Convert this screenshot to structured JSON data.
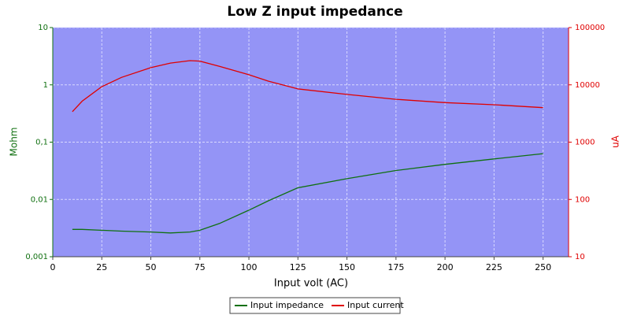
{
  "chart_data": {
    "type": "line",
    "title": "Low Z input impedance",
    "xlabel": "Input volt (AC)",
    "ylabel": "Mohm",
    "y2label": "uA",
    "x": [
      10,
      15,
      25,
      35,
      50,
      60,
      70,
      75,
      85,
      100,
      110,
      125,
      150,
      175,
      200,
      225,
      250
    ],
    "series": [
      {
        "name": "Input impedance",
        "color": "#107010",
        "values": [
          0.003,
          0.003,
          0.0029,
          0.0028,
          0.0027,
          0.0026,
          0.0027,
          0.0029,
          0.0038,
          0.0065,
          0.0095,
          0.016,
          0.023,
          0.032,
          0.041,
          0.051,
          0.063
        ]
      },
      {
        "name": "Input current",
        "color": "#e00000",
        "axis": "y2",
        "values": [
          3400,
          5200,
          9300,
          13500,
          20000,
          24000,
          26500,
          26000,
          21000,
          15000,
          11600,
          8500,
          6800,
          5600,
          4900,
          4500,
          4000
        ]
      }
    ],
    "xlim": [
      0,
      263
    ],
    "xticks": [
      0,
      25,
      50,
      75,
      100,
      125,
      150,
      175,
      200,
      225,
      250
    ],
    "ylim": [
      0.001,
      10
    ],
    "yticks": [
      {
        "value": 0.001,
        "label": "0,001"
      },
      {
        "value": 0.01,
        "label": "0,01"
      },
      {
        "value": 0.1,
        "label": "0,1"
      },
      1,
      10
    ],
    "y2lim": [
      10,
      100000
    ],
    "y2ticks": [
      10,
      100,
      1000,
      10000,
      100000
    ],
    "ylog": true,
    "y2log": true,
    "grid": true,
    "legend": "bottom"
  }
}
